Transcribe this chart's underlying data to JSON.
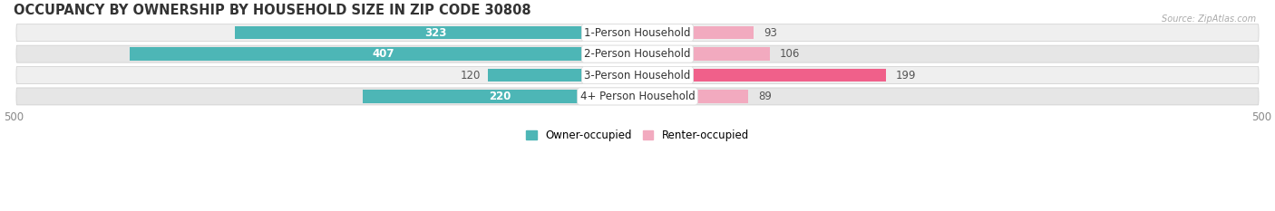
{
  "title": "OCCUPANCY BY OWNERSHIP BY HOUSEHOLD SIZE IN ZIP CODE 30808",
  "source": "Source: ZipAtlas.com",
  "categories": [
    "1-Person Household",
    "2-Person Household",
    "3-Person Household",
    "4+ Person Household"
  ],
  "owner_values": [
    323,
    407,
    120,
    220
  ],
  "renter_values": [
    93,
    106,
    199,
    89
  ],
  "owner_color": "#4db6b6",
  "renter_colors": [
    "#f2aabf",
    "#f2aabf",
    "#f0608a",
    "#f2aabf"
  ],
  "row_bg_colors": [
    "#efefef",
    "#e6e6e6",
    "#efefef",
    "#e6e6e6"
  ],
  "pill_bg_color": "#f7f7f7",
  "xlim": 500,
  "legend_owner": "Owner-occupied",
  "legend_renter": "Renter-occupied",
  "legend_renter_color": "#f2aabf",
  "title_fontsize": 10.5,
  "label_fontsize": 8.5,
  "value_fontsize": 8.5,
  "axis_label_fontsize": 8.5,
  "figsize": [
    14.06,
    2.33
  ],
  "dpi": 100
}
